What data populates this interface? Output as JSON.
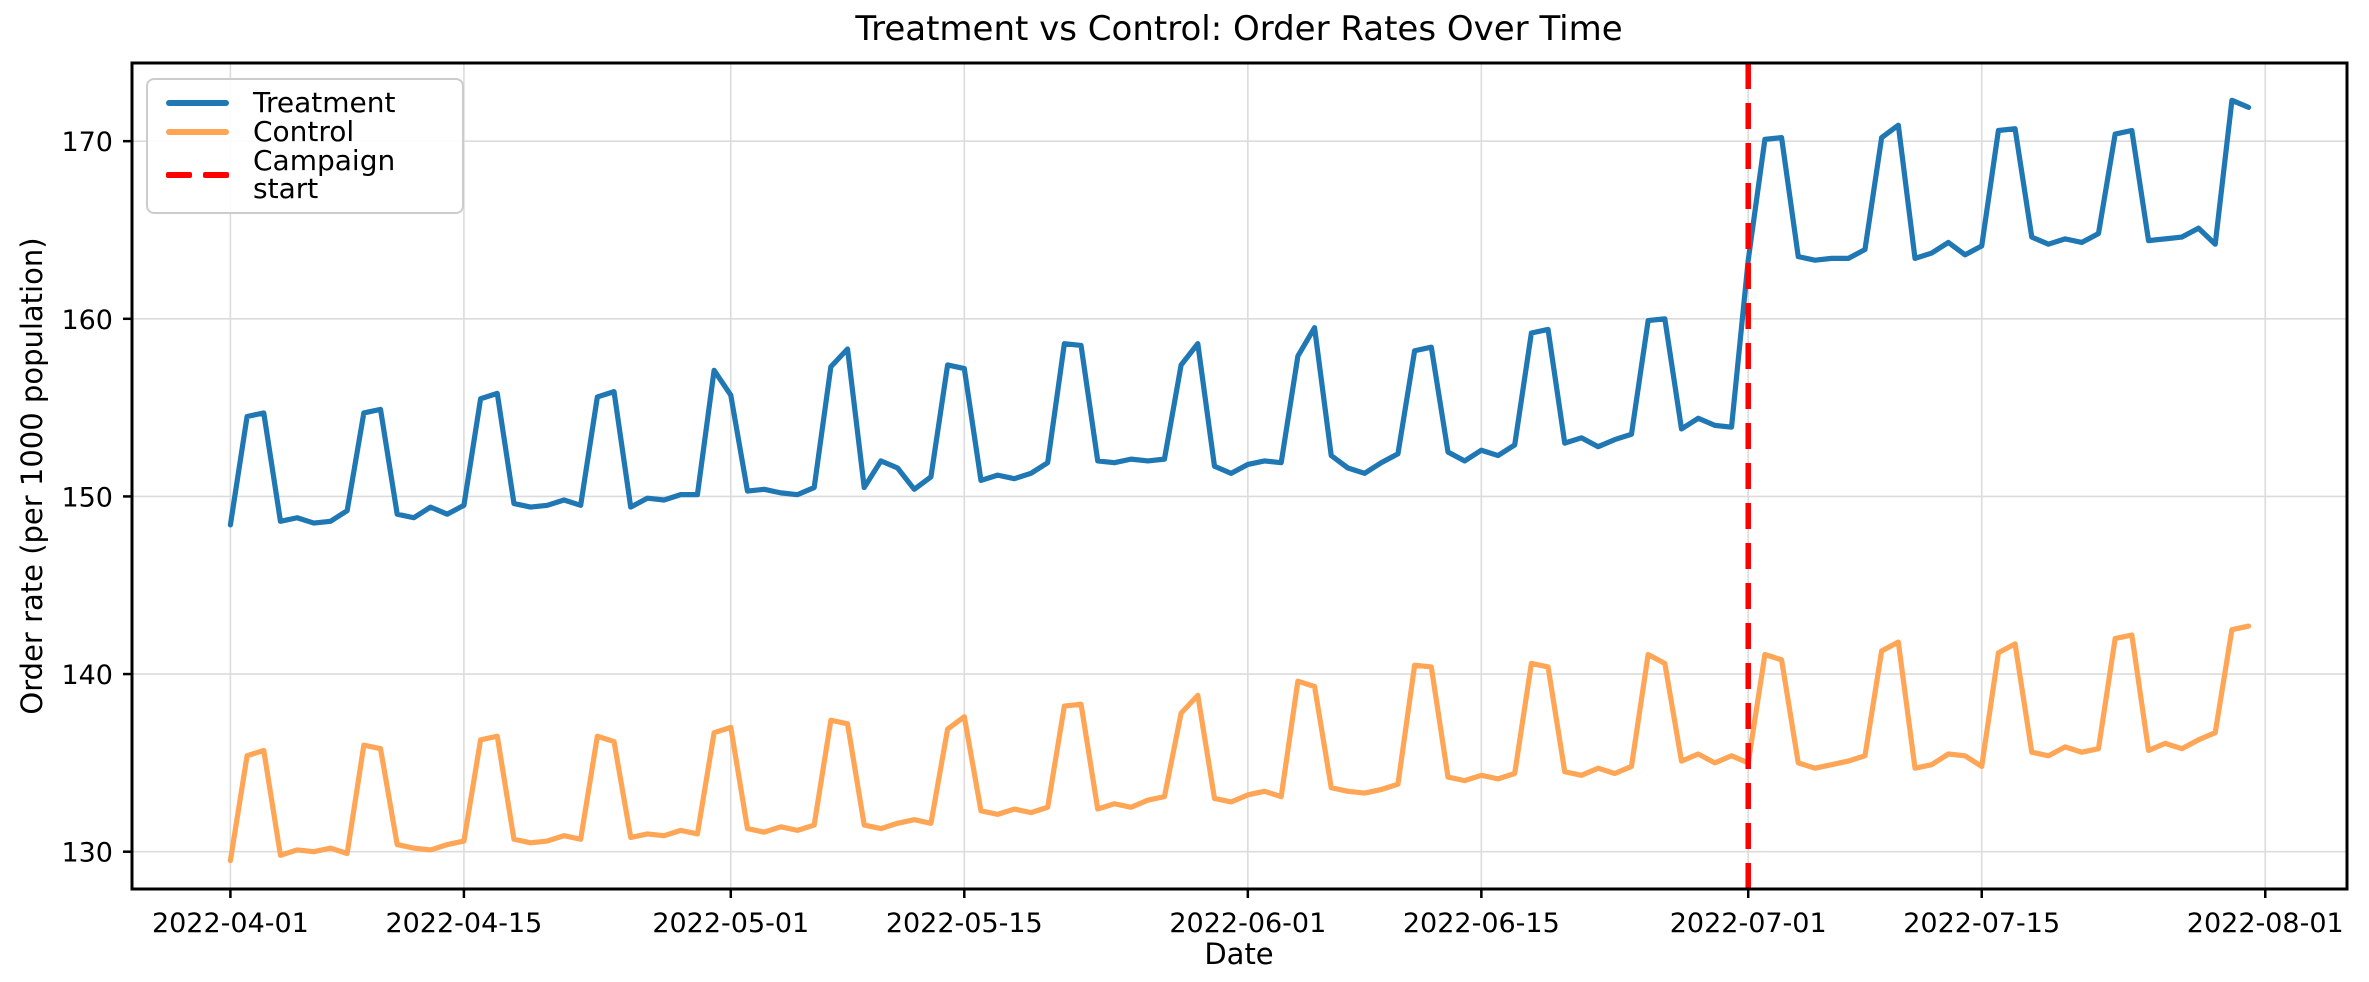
{
  "chart_data": {
    "type": "line",
    "title": "Treatment vs Control: Order Rates Over Time",
    "xlabel": "Date",
    "ylabel": "Order rate (per 1000 population)",
    "grid": true,
    "legend_position": "upper left",
    "y_ticks": [
      130,
      140,
      150,
      160,
      170
    ],
    "y_range": [
      127.9,
      174.4
    ],
    "x_range_days": [
      -5.9,
      126.9
    ],
    "x_ticks": [
      {
        "label": "2022-04-01",
        "day": 0
      },
      {
        "label": "2022-04-15",
        "day": 14
      },
      {
        "label": "2022-05-01",
        "day": 30
      },
      {
        "label": "2022-05-15",
        "day": 44
      },
      {
        "label": "2022-06-01",
        "day": 61
      },
      {
        "label": "2022-06-15",
        "day": 75
      },
      {
        "label": "2022-07-01",
        "day": 91
      },
      {
        "label": "2022-07-15",
        "day": 105
      },
      {
        "label": "2022-08-01",
        "day": 122
      }
    ],
    "campaign": {
      "label": "Campaign start",
      "date": "2022-07-01",
      "day_index": 91,
      "color": "#ff0000",
      "line_style": "dashed"
    },
    "style": {
      "background": "#ffffff",
      "grid_color": "#dcdcdc",
      "spine_color": "#000000",
      "tick_color": "#000000",
      "legend_border_color": "#cccccc"
    },
    "dates": [
      "2022-04-01",
      "2022-04-02",
      "2022-04-03",
      "2022-04-04",
      "2022-04-05",
      "2022-04-06",
      "2022-04-07",
      "2022-04-08",
      "2022-04-09",
      "2022-04-10",
      "2022-04-11",
      "2022-04-12",
      "2022-04-13",
      "2022-04-14",
      "2022-04-15",
      "2022-04-16",
      "2022-04-17",
      "2022-04-18",
      "2022-04-19",
      "2022-04-20",
      "2022-04-21",
      "2022-04-22",
      "2022-04-23",
      "2022-04-24",
      "2022-04-25",
      "2022-04-26",
      "2022-04-27",
      "2022-04-28",
      "2022-04-29",
      "2022-04-30",
      "2022-05-01",
      "2022-05-02",
      "2022-05-03",
      "2022-05-04",
      "2022-05-05",
      "2022-05-06",
      "2022-05-07",
      "2022-05-08",
      "2022-05-09",
      "2022-05-10",
      "2022-05-11",
      "2022-05-12",
      "2022-05-13",
      "2022-05-14",
      "2022-05-15",
      "2022-05-16",
      "2022-05-17",
      "2022-05-18",
      "2022-05-19",
      "2022-05-20",
      "2022-05-21",
      "2022-05-22",
      "2022-05-23",
      "2022-05-24",
      "2022-05-25",
      "2022-05-26",
      "2022-05-27",
      "2022-05-28",
      "2022-05-29",
      "2022-05-30",
      "2022-05-31",
      "2022-06-01",
      "2022-06-02",
      "2022-06-03",
      "2022-06-04",
      "2022-06-05",
      "2022-06-06",
      "2022-06-07",
      "2022-06-08",
      "2022-06-09",
      "2022-06-10",
      "2022-06-11",
      "2022-06-12",
      "2022-06-13",
      "2022-06-14",
      "2022-06-15",
      "2022-06-16",
      "2022-06-17",
      "2022-06-18",
      "2022-06-19",
      "2022-06-20",
      "2022-06-21",
      "2022-06-22",
      "2022-06-23",
      "2022-06-24",
      "2022-06-25",
      "2022-06-26",
      "2022-06-27",
      "2022-06-28",
      "2022-06-29",
      "2022-06-30",
      "2022-07-01",
      "2022-07-02",
      "2022-07-03",
      "2022-07-04",
      "2022-07-05",
      "2022-07-06",
      "2022-07-07",
      "2022-07-08",
      "2022-07-09",
      "2022-07-10",
      "2022-07-11",
      "2022-07-12",
      "2022-07-13",
      "2022-07-14",
      "2022-07-15",
      "2022-07-16",
      "2022-07-17",
      "2022-07-18",
      "2022-07-19",
      "2022-07-20",
      "2022-07-21",
      "2022-07-22",
      "2022-07-23",
      "2022-07-24",
      "2022-07-25",
      "2022-07-26",
      "2022-07-27",
      "2022-07-28",
      "2022-07-29",
      "2022-07-30",
      "2022-07-31"
    ],
    "series": [
      {
        "name": "Treatment",
        "color": "#1f77b4",
        "values": [
          148.4,
          154.5,
          154.7,
          148.6,
          148.8,
          148.5,
          148.6,
          149.2,
          154.7,
          154.9,
          149.0,
          148.8,
          149.4,
          149.0,
          149.5,
          155.5,
          155.8,
          149.6,
          149.4,
          149.5,
          149.8,
          149.5,
          155.6,
          155.9,
          149.4,
          149.9,
          149.8,
          150.1,
          150.1,
          157.1,
          155.7,
          150.3,
          150.4,
          150.2,
          150.1,
          150.5,
          157.3,
          158.3,
          150.5,
          152.0,
          151.6,
          150.4,
          151.1,
          157.4,
          157.2,
          150.9,
          151.2,
          151.0,
          151.3,
          151.9,
          158.6,
          158.5,
          152.0,
          151.9,
          152.1,
          152.0,
          152.1,
          157.4,
          158.6,
          151.7,
          151.3,
          151.8,
          152.0,
          151.9,
          157.9,
          159.5,
          152.3,
          151.6,
          151.3,
          151.9,
          152.4,
          158.2,
          158.4,
          152.5,
          152.0,
          152.6,
          152.3,
          152.9,
          159.2,
          159.4,
          153.0,
          153.3,
          152.8,
          153.2,
          153.5,
          159.9,
          160.0,
          153.8,
          154.4,
          154.0,
          153.9,
          163.3,
          170.1,
          170.2,
          163.5,
          163.3,
          163.4,
          163.4,
          163.9,
          170.2,
          170.9,
          163.4,
          163.7,
          164.3,
          163.6,
          164.1,
          170.6,
          170.7,
          164.6,
          164.2,
          164.5,
          164.3,
          164.8,
          170.4,
          170.6,
          164.4,
          164.5,
          164.6,
          165.1,
          164.2,
          172.3,
          171.9
        ]
      },
      {
        "name": "Control",
        "color": "#ffa556",
        "values": [
          129.5,
          135.4,
          135.7,
          129.8,
          130.1,
          130.0,
          130.2,
          129.9,
          136.0,
          135.8,
          130.4,
          130.2,
          130.1,
          130.4,
          130.6,
          136.3,
          136.5,
          130.7,
          130.5,
          130.6,
          130.9,
          130.7,
          136.5,
          136.2,
          130.8,
          131.0,
          130.9,
          131.2,
          131.0,
          136.7,
          137.0,
          131.3,
          131.1,
          131.4,
          131.2,
          131.5,
          137.4,
          137.2,
          131.5,
          131.3,
          131.6,
          131.8,
          131.6,
          136.9,
          137.6,
          132.3,
          132.1,
          132.4,
          132.2,
          132.5,
          138.2,
          138.3,
          132.4,
          132.7,
          132.5,
          132.9,
          133.1,
          137.8,
          138.8,
          133.0,
          132.8,
          133.2,
          133.4,
          133.1,
          139.6,
          139.3,
          133.6,
          133.4,
          133.3,
          133.5,
          133.8,
          140.5,
          140.4,
          134.2,
          134.0,
          134.3,
          134.1,
          134.4,
          140.6,
          140.4,
          134.5,
          134.3,
          134.7,
          134.4,
          134.8,
          141.1,
          140.6,
          135.1,
          135.5,
          135.0,
          135.4,
          135.0,
          141.1,
          140.8,
          135.0,
          134.7,
          134.9,
          135.1,
          135.4,
          141.3,
          141.8,
          134.7,
          134.9,
          135.5,
          135.4,
          134.8,
          141.2,
          141.7,
          135.6,
          135.4,
          135.9,
          135.6,
          135.8,
          142.0,
          142.2,
          135.7,
          136.1,
          135.8,
          136.3,
          136.7,
          142.5,
          142.7
        ]
      }
    ]
  }
}
